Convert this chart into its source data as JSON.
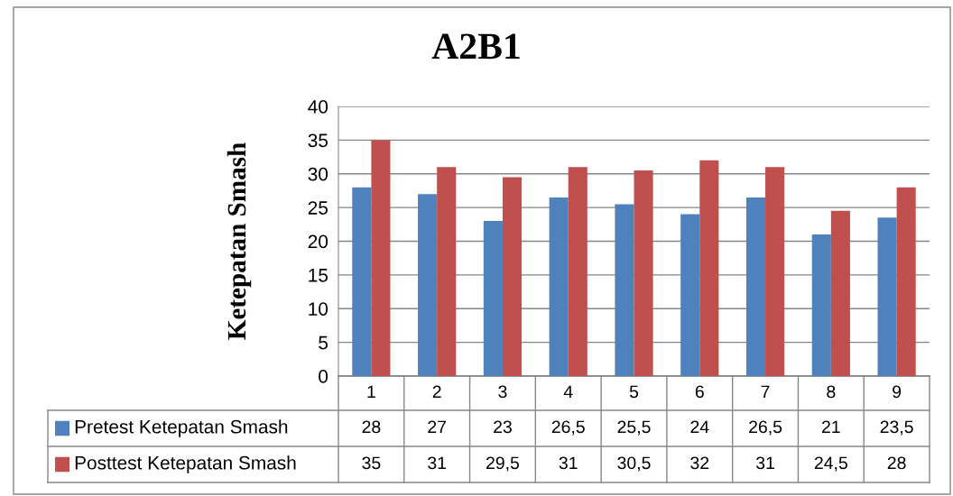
{
  "chart_data": {
    "type": "bar",
    "title": "A2B1",
    "ylabel": "Ketepatan Smash",
    "categories": [
      "1",
      "2",
      "3",
      "4",
      "5",
      "6",
      "7",
      "8",
      "9"
    ],
    "series": [
      {
        "name": "Pretest Ketepatan Smash",
        "color": "#4f81bd",
        "values": [
          28,
          27,
          23,
          26.5,
          25.5,
          24,
          26.5,
          21,
          23.5
        ],
        "value_labels": [
          "28",
          "27",
          "23",
          "26,5",
          "25,5",
          "24",
          "26,5",
          "21",
          "23,5"
        ]
      },
      {
        "name": "Posttest Ketepatan Smash",
        "color": "#c0504d",
        "values": [
          35,
          31,
          29.5,
          31,
          30.5,
          32,
          31,
          24.5,
          28
        ],
        "value_labels": [
          "35",
          "31",
          "29,5",
          "31",
          "30,5",
          "32",
          "31",
          "24,5",
          "28"
        ]
      }
    ],
    "ylim": [
      0,
      40
    ],
    "yticks": [
      0,
      5,
      10,
      15,
      20,
      25,
      30,
      35,
      40
    ],
    "grid": "y",
    "legend": "bottom"
  }
}
